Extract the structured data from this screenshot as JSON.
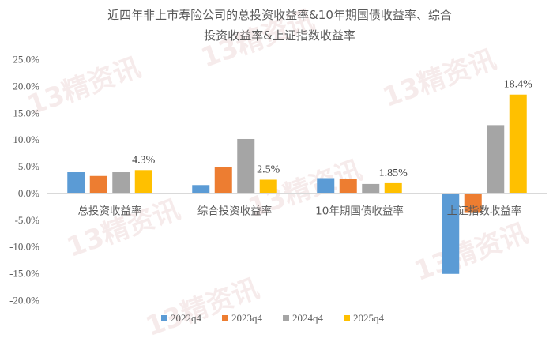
{
  "chart_data": {
    "type": "bar",
    "title": "近四年非上市寿险公司的总投资收益率&10年期国债收益率、综合投资收益率&上证指数收益率",
    "title_lines": [
      "近四年非上市寿险公司的总投资收益率&10年期国债收益率、综合",
      "投资收益率&上证指数收益率"
    ],
    "categories": [
      "总投资收益率",
      "综合投资收益率",
      "10年期国债收益率",
      "上证指数收益率"
    ],
    "series": [
      {
        "name": "2022q4",
        "color": "#5b9bd5",
        "values": [
          3.9,
          1.5,
          2.8,
          -15.1
        ]
      },
      {
        "name": "2023q4",
        "color": "#ed7d31",
        "values": [
          3.2,
          4.9,
          2.6,
          -3.7
        ]
      },
      {
        "name": "2024q4",
        "color": "#a5a5a5",
        "values": [
          3.9,
          10.1,
          1.7,
          12.7
        ]
      },
      {
        "name": "2025q4",
        "color": "#ffc000",
        "values": [
          4.3,
          2.5,
          1.85,
          18.4
        ]
      }
    ],
    "data_labels": [
      {
        "series": 3,
        "category": 0,
        "text": "4.3%"
      },
      {
        "series": 3,
        "category": 1,
        "text": "2.5%"
      },
      {
        "series": 3,
        "category": 2,
        "text": "1.85%"
      },
      {
        "series": 3,
        "category": 3,
        "text": "18.4%"
      }
    ],
    "ylim": [
      -20,
      25
    ],
    "yticks": [
      "25.0%",
      "20.0%",
      "15.0%",
      "10.0%",
      "5.0%",
      "0.0%",
      "-5.0%",
      "-10.0%",
      "-15.0%",
      "-20.0%"
    ],
    "ytick_values": [
      25,
      20,
      15,
      10,
      5,
      0,
      -5,
      -10,
      -15,
      -20
    ],
    "grid": false,
    "legend_position": "bottom",
    "watermark_text": "13精资讯"
  }
}
